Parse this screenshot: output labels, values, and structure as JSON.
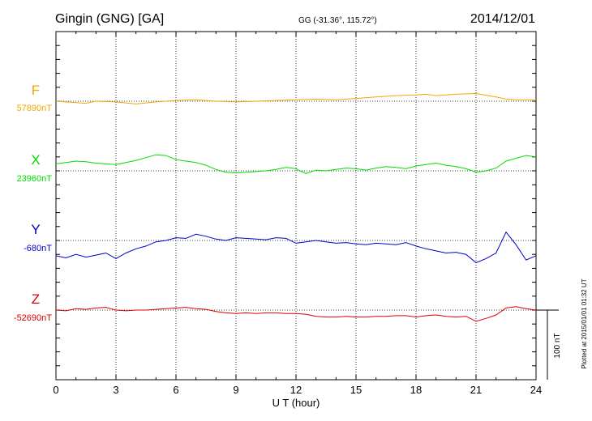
{
  "header": {
    "station": "Gingin (GNG)  [GA]",
    "coords": "GG (-31.36°, 115.72°)",
    "date": "2014/12/01"
  },
  "footer": {
    "plotted": "Plotted at 2015/01/01 01:32 UT",
    "scale_label": "100 nT"
  },
  "chart_data": {
    "type": "line",
    "xlabel": "U T (hour)",
    "xlim": [
      0,
      24
    ],
    "xticks": [
      "0",
      "3",
      "6",
      "9",
      "12",
      "15",
      "18",
      "21",
      "24"
    ],
    "scale_bar_nT": 100,
    "grid": "vertical dotted every 3 hours",
    "series": [
      {
        "name": "F",
        "baseline": "57890nT",
        "color": "#f0a800",
        "x": [
          0,
          1,
          1.5,
          2,
          3,
          4,
          5,
          6,
          7,
          8,
          9,
          10,
          11,
          12,
          13,
          14,
          15,
          16,
          17,
          18,
          18.5,
          19,
          20,
          21,
          22,
          22.5,
          23,
          24
        ],
        "y": [
          0,
          -2,
          -3,
          0,
          -1,
          -4,
          -1,
          1,
          2,
          0,
          -1,
          0,
          1,
          2,
          3,
          2,
          4,
          6,
          8,
          9,
          10,
          8,
          10,
          11,
          6,
          3,
          2,
          2
        ]
      },
      {
        "name": "X",
        "baseline": "23960nT",
        "color": "#00dd00",
        "x": [
          0,
          0.5,
          1,
          1.5,
          2,
          2.5,
          3,
          3.5,
          4,
          4.5,
          5,
          5.5,
          6,
          6.5,
          7,
          7.5,
          8,
          8.5,
          9,
          9.5,
          10,
          10.5,
          11,
          11.5,
          12,
          12.5,
          13,
          13.5,
          14,
          14.5,
          15,
          15.5,
          16,
          16.5,
          17,
          17.5,
          18,
          18.5,
          19,
          19.5,
          20,
          20.5,
          21,
          21.5,
          22,
          22.5,
          23,
          23.5,
          24
        ],
        "y": [
          10,
          12,
          14,
          13,
          11,
          10,
          9,
          12,
          15,
          19,
          23,
          22,
          16,
          14,
          12,
          8,
          2,
          -2,
          -3,
          -2,
          -1,
          0,
          2,
          5,
          3,
          -4,
          1,
          0,
          2,
          4,
          3,
          1,
          4,
          6,
          5,
          3,
          7,
          9,
          11,
          8,
          6,
          3,
          -2,
          0,
          4,
          14,
          18,
          22,
          20
        ]
      },
      {
        "name": "Y",
        "baseline": "-680nT",
        "color": "#0000cc",
        "x": [
          0,
          0.5,
          1,
          1.5,
          2,
          2.5,
          3,
          3.5,
          4,
          4.5,
          5,
          5.5,
          6,
          6.5,
          7,
          7.5,
          8,
          8.5,
          9,
          9.5,
          10,
          10.5,
          11,
          11.5,
          12,
          12.5,
          13,
          13.5,
          14,
          14.5,
          15,
          15.5,
          16,
          16.5,
          17,
          17.5,
          18,
          18.5,
          19,
          19.5,
          20,
          20.5,
          21,
          21.5,
          22,
          22.5,
          23,
          23.5,
          24
        ],
        "y": [
          -22,
          -25,
          -20,
          -24,
          -21,
          -18,
          -26,
          -18,
          -12,
          -8,
          -2,
          0,
          4,
          3,
          9,
          6,
          2,
          0,
          4,
          3,
          2,
          1,
          4,
          3,
          -4,
          -2,
          0,
          -2,
          -4,
          -3,
          -5,
          -6,
          -4,
          -5,
          -6,
          -3,
          -8,
          -12,
          -15,
          -18,
          -17,
          -20,
          -32,
          -26,
          -18,
          12,
          -6,
          -28,
          -22
        ]
      },
      {
        "name": "Z",
        "baseline": "-52690nT",
        "color": "#dd0000",
        "x": [
          0,
          0.5,
          1,
          1.5,
          2,
          2.5,
          3,
          3.5,
          4,
          4.5,
          5,
          5.5,
          6,
          6.5,
          7,
          7.5,
          8,
          8.5,
          9,
          9.5,
          10,
          10.5,
          11,
          11.5,
          12,
          12.5,
          13,
          13.5,
          14,
          14.5,
          15,
          15.5,
          16,
          16.5,
          17,
          17.5,
          18,
          18.5,
          19,
          19.5,
          20,
          20.5,
          21,
          21.5,
          22,
          22.5,
          23,
          23.5,
          24
        ],
        "y": [
          0,
          -1,
          2,
          1,
          3,
          4,
          0,
          -1,
          0,
          0,
          1,
          2,
          3,
          4,
          2,
          1,
          -2,
          -4,
          -5,
          -4,
          -5,
          -4,
          -4,
          -5,
          -5,
          -6,
          -9,
          -10,
          -10,
          -9,
          -10,
          -10,
          -9,
          -9,
          -8,
          -8,
          -10,
          -8,
          -7,
          -9,
          -10,
          -9,
          -16,
          -12,
          -7,
          3,
          5,
          2,
          0
        ]
      }
    ]
  }
}
